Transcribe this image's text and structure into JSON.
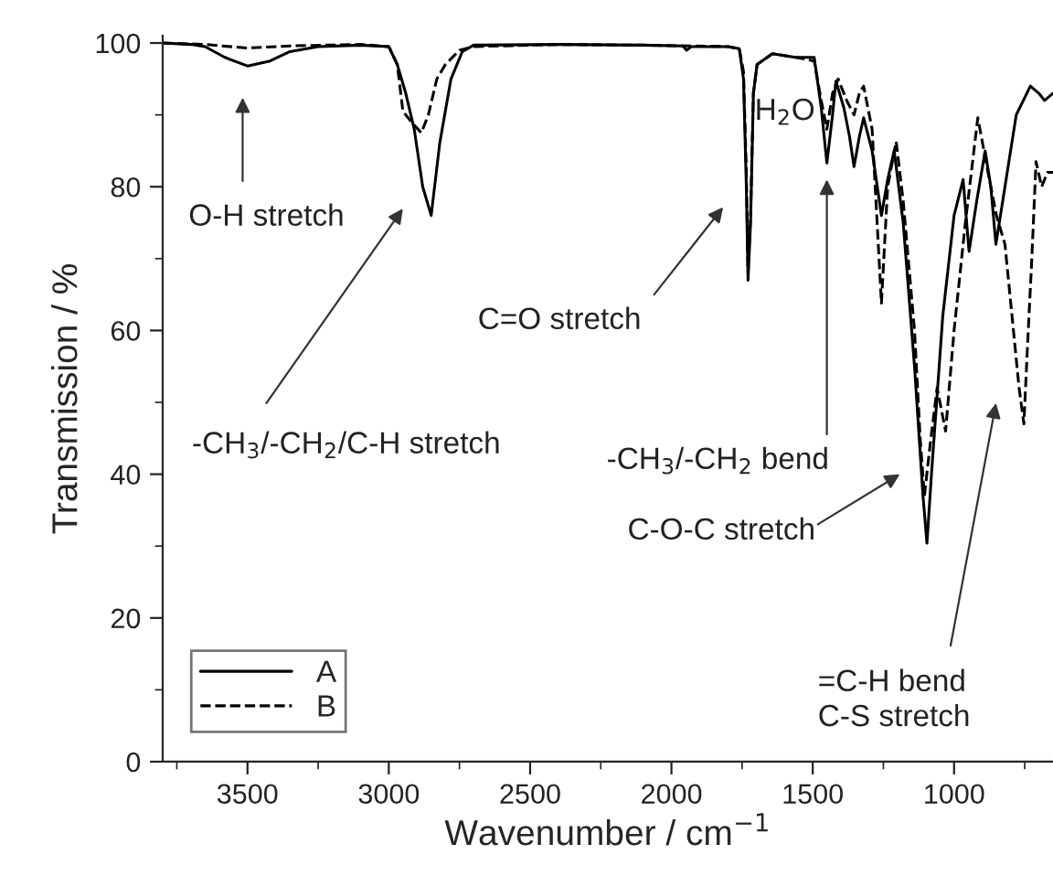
{
  "chart_data": {
    "type": "line",
    "xlabel": "Wavenumber / cm$^{−1}$",
    "ylabel": "Transmission / %",
    "xlim": [
      3800,
      650
    ],
    "ylim": [
      0,
      101
    ],
    "xticks": [
      {
        "value": 3750,
        "label": null
      },
      3500,
      {
        "value": 3250,
        "label": null
      },
      3000,
      {
        "value": 2750,
        "label": null
      },
      2500,
      {
        "value": 2250,
        "label": null
      },
      2000,
      {
        "value": 1750,
        "label": null
      },
      1500,
      {
        "value": 1250,
        "label": null
      },
      1000,
      {
        "value": 750,
        "label": null
      }
    ],
    "yticks": [
      0,
      {
        "value": 10,
        "label": null
      },
      20,
      {
        "value": 30,
        "label": null
      },
      40,
      {
        "value": 50,
        "label": null
      },
      60,
      {
        "value": 70,
        "label": null
      },
      80,
      {
        "value": 90,
        "label": null
      },
      100
    ],
    "grid": false,
    "legend": "bottom left",
    "series": [
      {
        "name": "A",
        "color": "#000000",
        "line_style": "solid",
        "x": [
          3800,
          3700,
          3650,
          3580,
          3500,
          3420,
          3350,
          3250,
          3100,
          3000,
          2970,
          2940,
          2910,
          2880,
          2850,
          2820,
          2780,
          2740,
          2700,
          2400,
          2100,
          1960,
          1946,
          1930,
          1800,
          1760,
          1745,
          1735,
          1729,
          1720,
          1710,
          1697,
          1643,
          1560,
          1495,
          1470,
          1450,
          1430,
          1418,
          1390,
          1370,
          1354,
          1335,
          1320,
          1290,
          1257,
          1235,
          1212,
          1180,
          1140,
          1110,
          1096,
          1080,
          1040,
          1000,
          968,
          947,
          920,
          890,
          870,
          852,
          820,
          780,
          730,
          700,
          680,
          650
        ],
        "values": [
          100,
          99.8,
          99.5,
          98,
          96.8,
          97.5,
          98.8,
          99.5,
          99.7,
          99.5,
          97,
          93,
          88,
          80,
          76,
          86,
          95,
          98.8,
          99.7,
          99.8,
          99.7,
          99.6,
          99,
          99.5,
          99.5,
          99.2,
          95,
          80,
          67,
          75,
          93,
          97,
          98.5,
          98,
          98,
          91,
          83.3,
          90,
          94.7,
          91,
          87,
          82.8,
          87,
          89.6,
          85,
          76,
          81,
          85,
          75,
          55,
          37,
          30.4,
          40,
          62,
          76,
          81,
          71,
          78,
          85,
          80,
          72,
          80,
          90,
          94,
          93,
          92,
          93
        ]
      },
      {
        "name": "B",
        "color": "#000000",
        "line_style": "dashed",
        "x": [
          3800,
          3650,
          3500,
          3350,
          3100,
          3000,
          2970,
          2950,
          2920,
          2885,
          2860,
          2830,
          2800,
          2750,
          2700,
          2400,
          2100,
          1800,
          1760,
          1745,
          1735,
          1729,
          1720,
          1710,
          1697,
          1643,
          1560,
          1495,
          1470,
          1450,
          1430,
          1410,
          1380,
          1354,
          1335,
          1320,
          1290,
          1257,
          1235,
          1205,
          1180,
          1140,
          1120,
          1105,
          1085,
          1060,
          1030,
          1000,
          960,
          916,
          880,
          850,
          820,
          790,
          770,
          753,
          740,
          725,
          710,
          690,
          670,
          650
        ],
        "values": [
          100,
          99.8,
          99.3,
          99.6,
          99.8,
          99.5,
          97,
          90.5,
          89,
          87.5,
          90,
          95,
          97,
          99,
          99.5,
          99.8,
          99.7,
          99.5,
          99.2,
          96,
          82,
          68,
          76,
          93,
          97,
          98.5,
          98,
          97.5,
          92,
          88,
          93,
          95,
          92,
          90,
          93,
          94,
          88,
          63.8,
          80,
          86.3,
          78,
          60,
          45,
          37,
          44,
          52,
          46,
          60,
          75,
          89.6,
          82,
          76,
          72,
          60,
          52,
          47,
          58,
          70,
          83.5,
          80,
          82,
          82
        ]
      }
    ],
    "annotations": [
      "O-H stretch",
      "-CH$_{3}$/-CH$_{2}$/C-H stretch",
      "C=O stretch",
      "H$_{2}$O",
      "-CH$_{3}$/-CH$_{2}$ bend",
      "C-O-C stretch",
      "=C-H bend\nC-S stretch"
    ]
  }
}
